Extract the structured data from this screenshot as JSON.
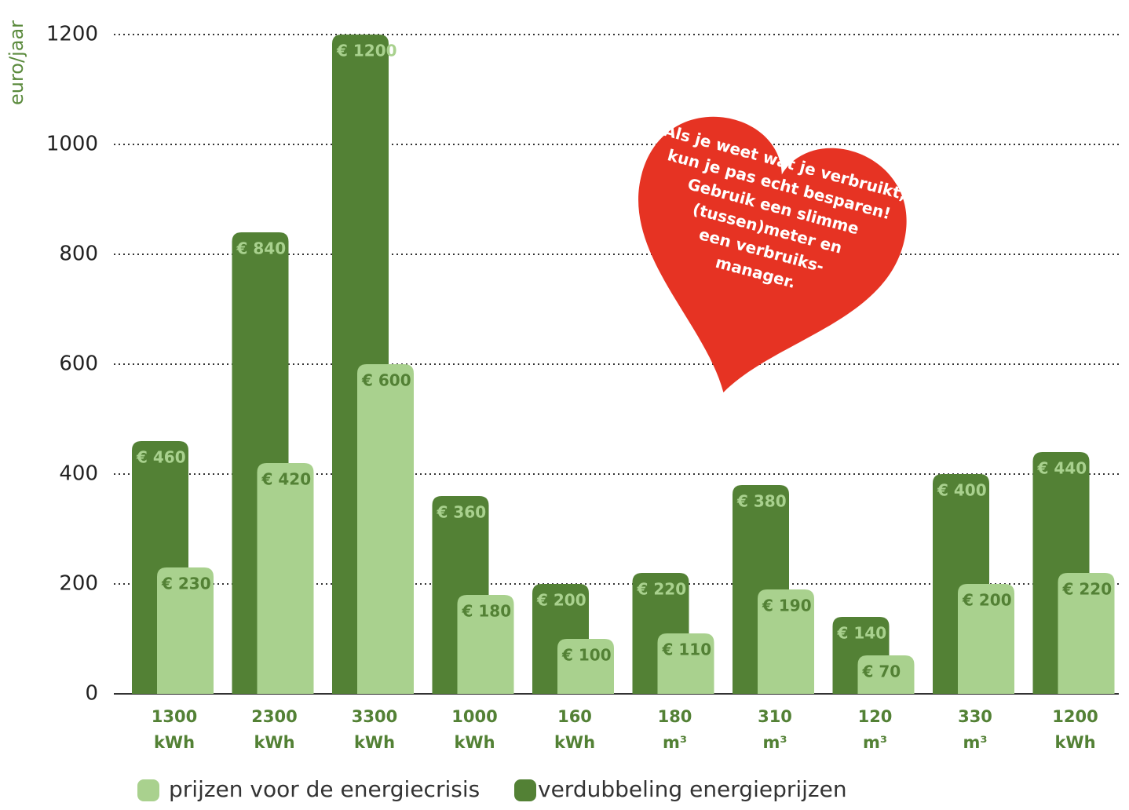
{
  "chart_data": {
    "type": "bar",
    "ylabel": "euro/jaar",
    "categories": [
      [
        "1300",
        "kWh"
      ],
      [
        "2300",
        "kWh"
      ],
      [
        "3300",
        "kWh"
      ],
      [
        "1000",
        "kWh"
      ],
      [
        "160",
        "kWh"
      ],
      [
        "180",
        "m³"
      ],
      [
        "310",
        "m³"
      ],
      [
        "120",
        "m³"
      ],
      [
        "330",
        "m³"
      ],
      [
        "1200",
        "kWh"
      ]
    ],
    "series": [
      {
        "name": "verdubbeling energieprijzen",
        "color": "#538135",
        "values": [
          460,
          840,
          1200,
          360,
          200,
          220,
          380,
          140,
          400,
          440
        ],
        "value_labels": [
          "€ 460",
          "€ 840",
          "€ 1200",
          "€ 360",
          "€ 200",
          "€ 220",
          "€ 380",
          "€ 140",
          "€ 400",
          "€ 440"
        ]
      },
      {
        "name": "prijzen voor de energiecrisis",
        "color": "#a9d18e",
        "values": [
          230,
          420,
          600,
          180,
          100,
          110,
          190,
          70,
          200,
          220
        ],
        "value_labels": [
          "€ 230",
          "€ 420",
          "€ 600",
          "€ 180",
          "€ 100",
          "€ 110",
          "€ 190",
          "€ 70",
          "€ 200",
          "€ 220"
        ]
      }
    ],
    "ylim": [
      0,
      1200
    ],
    "yticks": [
      0,
      200,
      400,
      600,
      800,
      1000,
      1200
    ],
    "grid": true,
    "annotation_lines": [
      "Als je weet wat je verbruikt,",
      "kun je pas echt besparen!",
      "Gebruik een slimme",
      "(tussen)meter en",
      "een verbruiks-",
      "manager."
    ]
  }
}
